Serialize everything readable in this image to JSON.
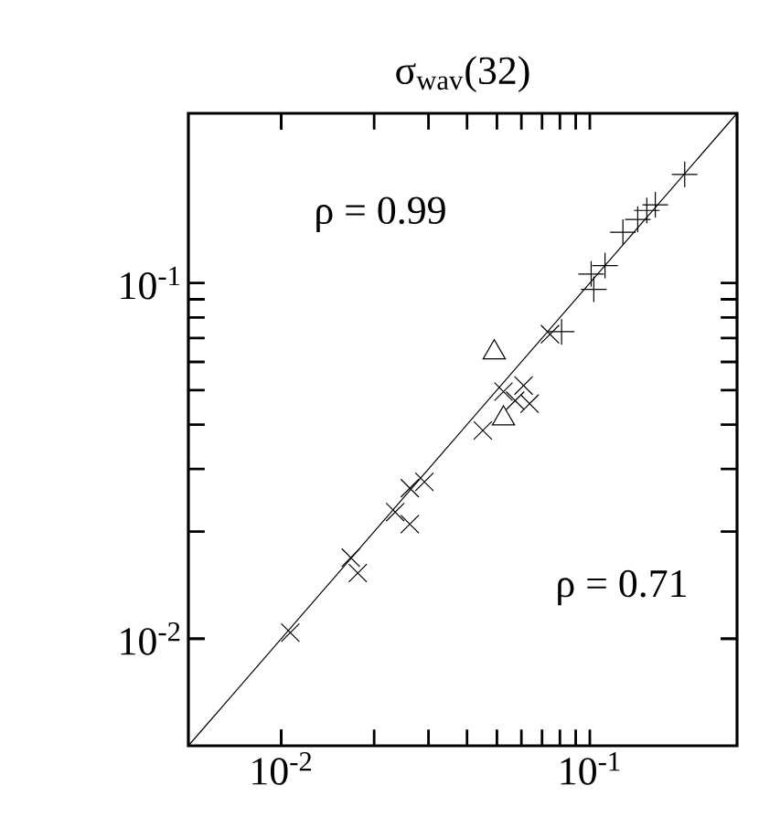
{
  "chart_data": {
    "type": "scatter",
    "title": "σ$_{wav}$(32)",
    "log": "xy",
    "grid": false,
    "xlim": [
      0.005,
      0.3
    ],
    "ylim": [
      0.005,
      0.3
    ],
    "xticks": [
      {
        "value": 0.01,
        "label": "10$^{-2}$"
      },
      {
        "value": 0.1,
        "label": "10$^{-1}$"
      }
    ],
    "yticks": [
      {
        "value": 0.01,
        "label": "10$^{-2}$"
      },
      {
        "value": 0.1,
        "label": "10$^{-1}$"
      }
    ],
    "annotations": [
      "ρ = 0.99",
      "ρ = 0.71"
    ],
    "series": [
      {
        "type": "line",
        "color": "#000000",
        "marker": "none",
        "x": [
          0.005,
          0.3
        ],
        "values": [
          0.005,
          0.3
        ]
      },
      {
        "color": "#000000",
        "marker": "cross",
        "x": [
          0.0107,
          0.0168,
          0.0177,
          0.0234,
          0.0261,
          0.0261,
          0.0291,
          0.045,
          0.0525,
          0.0573,
          0.061,
          0.0638,
          0.0743
        ],
        "values": [
          0.0104,
          0.0169,
          0.0153,
          0.0227,
          0.021,
          0.0265,
          0.0276,
          0.0385,
          0.0495,
          0.0467,
          0.0515,
          0.0458,
          0.0718
        ]
      },
      {
        "color": "#000000",
        "marker": "triangle",
        "x": [
          0.049,
          0.0525
        ],
        "values": [
          0.0638,
          0.0416
        ]
      },
      {
        "color": "#000000",
        "marker": "plus",
        "x": [
          0.081,
          0.101,
          0.103,
          0.112,
          0.128,
          0.143,
          0.153,
          0.163,
          0.203
        ],
        "values": [
          0.073,
          0.106,
          0.096,
          0.112,
          0.139,
          0.151,
          0.16,
          0.166,
          0.202
        ]
      }
    ]
  }
}
